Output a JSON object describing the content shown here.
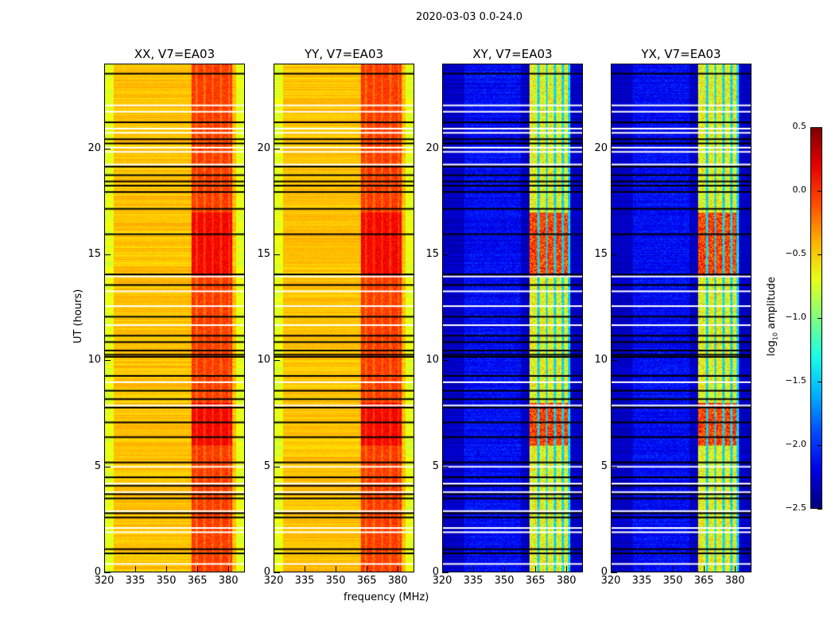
{
  "suptitle": "2020-03-03 0.0-24.0",
  "chart_data": {
    "type": "heatmap",
    "xlabel": "frequency (MHz)",
    "ylabel": "UT (hours)",
    "xlim": [
      320,
      388
    ],
    "ylim": [
      0,
      24
    ],
    "xticks": [
      "320",
      "335",
      "350",
      "365",
      "380"
    ],
    "xtick_values": [
      320,
      335,
      350,
      365,
      380
    ],
    "yticks": [
      "0",
      "5",
      "10",
      "15",
      "20"
    ],
    "ytick_values": [
      0,
      5,
      10,
      15,
      20
    ],
    "colormap": "jet",
    "colorbar": {
      "label": "log10 amplitude",
      "label_main": "log",
      "label_sub": "10",
      "label_rest": " amplitude",
      "vmin": -2.5,
      "vmax": 0.5,
      "ticks": [
        "0.5",
        "0.0",
        "−0.5",
        "−1.0",
        "−1.5",
        "−2.0",
        "−2.5"
      ],
      "tick_values": [
        0.5,
        0,
        -0.5,
        -1,
        -1.5,
        -2,
        -2.5
      ]
    },
    "panels": [
      {
        "title": "XX, V7=EA03",
        "base": -0.45,
        "band_level": -0.05,
        "band_type": "broad",
        "strong_hours": [
          [
            14,
            17
          ],
          [
            6,
            8
          ]
        ],
        "strong_offset": 0.18
      },
      {
        "title": "YY, V7=EA03",
        "base": -0.45,
        "band_level": -0.05,
        "band_type": "broad",
        "strong_hours": [
          [
            14,
            17
          ],
          [
            6,
            8
          ]
        ],
        "strong_offset": 0.18
      },
      {
        "title": "XY, V7=EA03",
        "base": -2.3,
        "band_level": -0.8,
        "band_type": "stripes",
        "strong_hours": [
          [
            14,
            17
          ],
          [
            6,
            8
          ]
        ],
        "strong_offset": 0.6
      },
      {
        "title": "YX, V7=EA03",
        "base": -2.3,
        "band_level": -0.8,
        "band_type": "stripes",
        "strong_hours": [
          [
            14,
            17
          ],
          [
            6,
            8
          ]
        ],
        "strong_offset": 0.6
      }
    ],
    "band_mhz": [
      362,
      382
    ],
    "stripes_mhz": [
      [
        362,
        366
      ],
      [
        367,
        370
      ],
      [
        371,
        374
      ],
      [
        375,
        378
      ],
      [
        379,
        381
      ]
    ],
    "flagged_black_hours": [
      0.9,
      1.1,
      2.6,
      2.8,
      3.5,
      3.7,
      4.1,
      4.5,
      5.2,
      6.4,
      7.1,
      7.8,
      8.2,
      8.6,
      9.3,
      10.2,
      10.3,
      10.5,
      10.9,
      11.2,
      12.1,
      13.6,
      14.1,
      16.0,
      17.2,
      18.0,
      18.3,
      18.5,
      18.8,
      19.2,
      20.3,
      20.5,
      21.3,
      23.6
    ],
    "flagged_white_hours": [
      0.4,
      1.9,
      2.1,
      2.9,
      3.8,
      4.2,
      5.0,
      7.9,
      9.0,
      11.7,
      12.6,
      13.3,
      14.0,
      19.3,
      19.9,
      20.1,
      20.8,
      21.0,
      21.8,
      22.1
    ]
  }
}
